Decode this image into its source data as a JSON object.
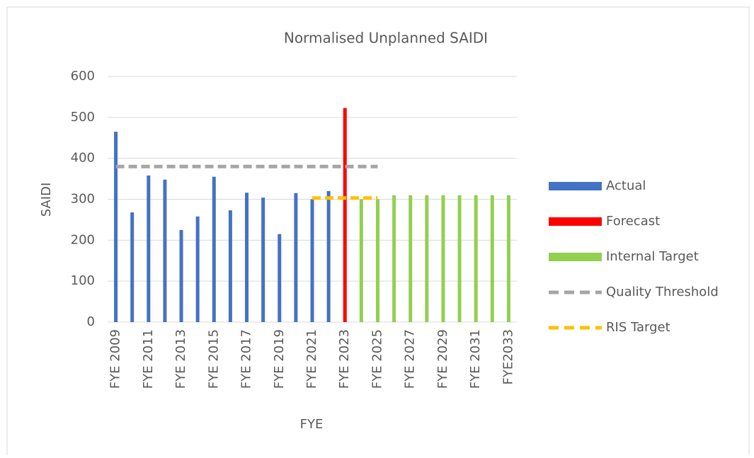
{
  "chart_data": {
    "type": "bar",
    "title": "Normalised Unplanned SAIDI",
    "x_label": "FYE",
    "y_label": "SAIDI",
    "categories": [
      "FYE 2009",
      null,
      "FYE 2011",
      null,
      "FYE 2013",
      null,
      "FYE 2015",
      null,
      "FYE 2017",
      null,
      "FYE 2019",
      null,
      "FYE 2021",
      null,
      "FYE 2023",
      null,
      "FYE 2025",
      null,
      "FYE 2027",
      null,
      "FYE 2029",
      null,
      "FYE 2031",
      null,
      "FYE2033"
    ],
    "series": [
      {
        "name": "Actual",
        "type": "bar",
        "color": "#4472c4",
        "values": [
          465,
          268,
          358,
          348,
          225,
          258,
          355,
          273,
          316,
          304,
          215,
          315,
          300,
          320,
          null,
          null,
          null,
          null,
          null,
          null,
          null,
          null,
          null,
          null,
          null
        ]
      },
      {
        "name": "Forecast",
        "type": "bar",
        "color": "#ff0000",
        "values": [
          null,
          null,
          null,
          null,
          null,
          null,
          null,
          null,
          null,
          null,
          null,
          null,
          null,
          null,
          523,
          null,
          null,
          null,
          null,
          null,
          null,
          null,
          null,
          null,
          null
        ]
      },
      {
        "name": "Internal Target",
        "type": "bar",
        "color": "#92d050",
        "values": [
          null,
          null,
          null,
          null,
          null,
          null,
          null,
          null,
          null,
          null,
          null,
          null,
          null,
          null,
          null,
          300,
          300,
          310,
          310,
          310,
          310,
          310,
          310,
          310,
          310
        ]
      },
      {
        "name": "Quality Threshold",
        "type": "line",
        "dashed": true,
        "color": "#a5a5a5",
        "values": [
          380,
          380,
          380,
          380,
          380,
          380,
          380,
          380,
          380,
          380,
          380,
          380,
          380,
          380,
          380,
          380,
          380,
          null,
          null,
          null,
          null,
          null,
          null,
          null,
          null
        ]
      },
      {
        "name": "RIS Target",
        "type": "line",
        "dashed": true,
        "color": "#ffc000",
        "values": [
          null,
          null,
          null,
          null,
          null,
          null,
          null,
          null,
          null,
          null,
          null,
          null,
          303,
          303,
          303,
          303,
          303,
          null,
          null,
          null,
          null,
          null,
          null,
          null,
          null
        ]
      }
    ],
    "ylim": [
      0,
      600
    ],
    "yticks": [
      0,
      100,
      200,
      300,
      400,
      500,
      600
    ],
    "grid": true,
    "legend": "right"
  }
}
